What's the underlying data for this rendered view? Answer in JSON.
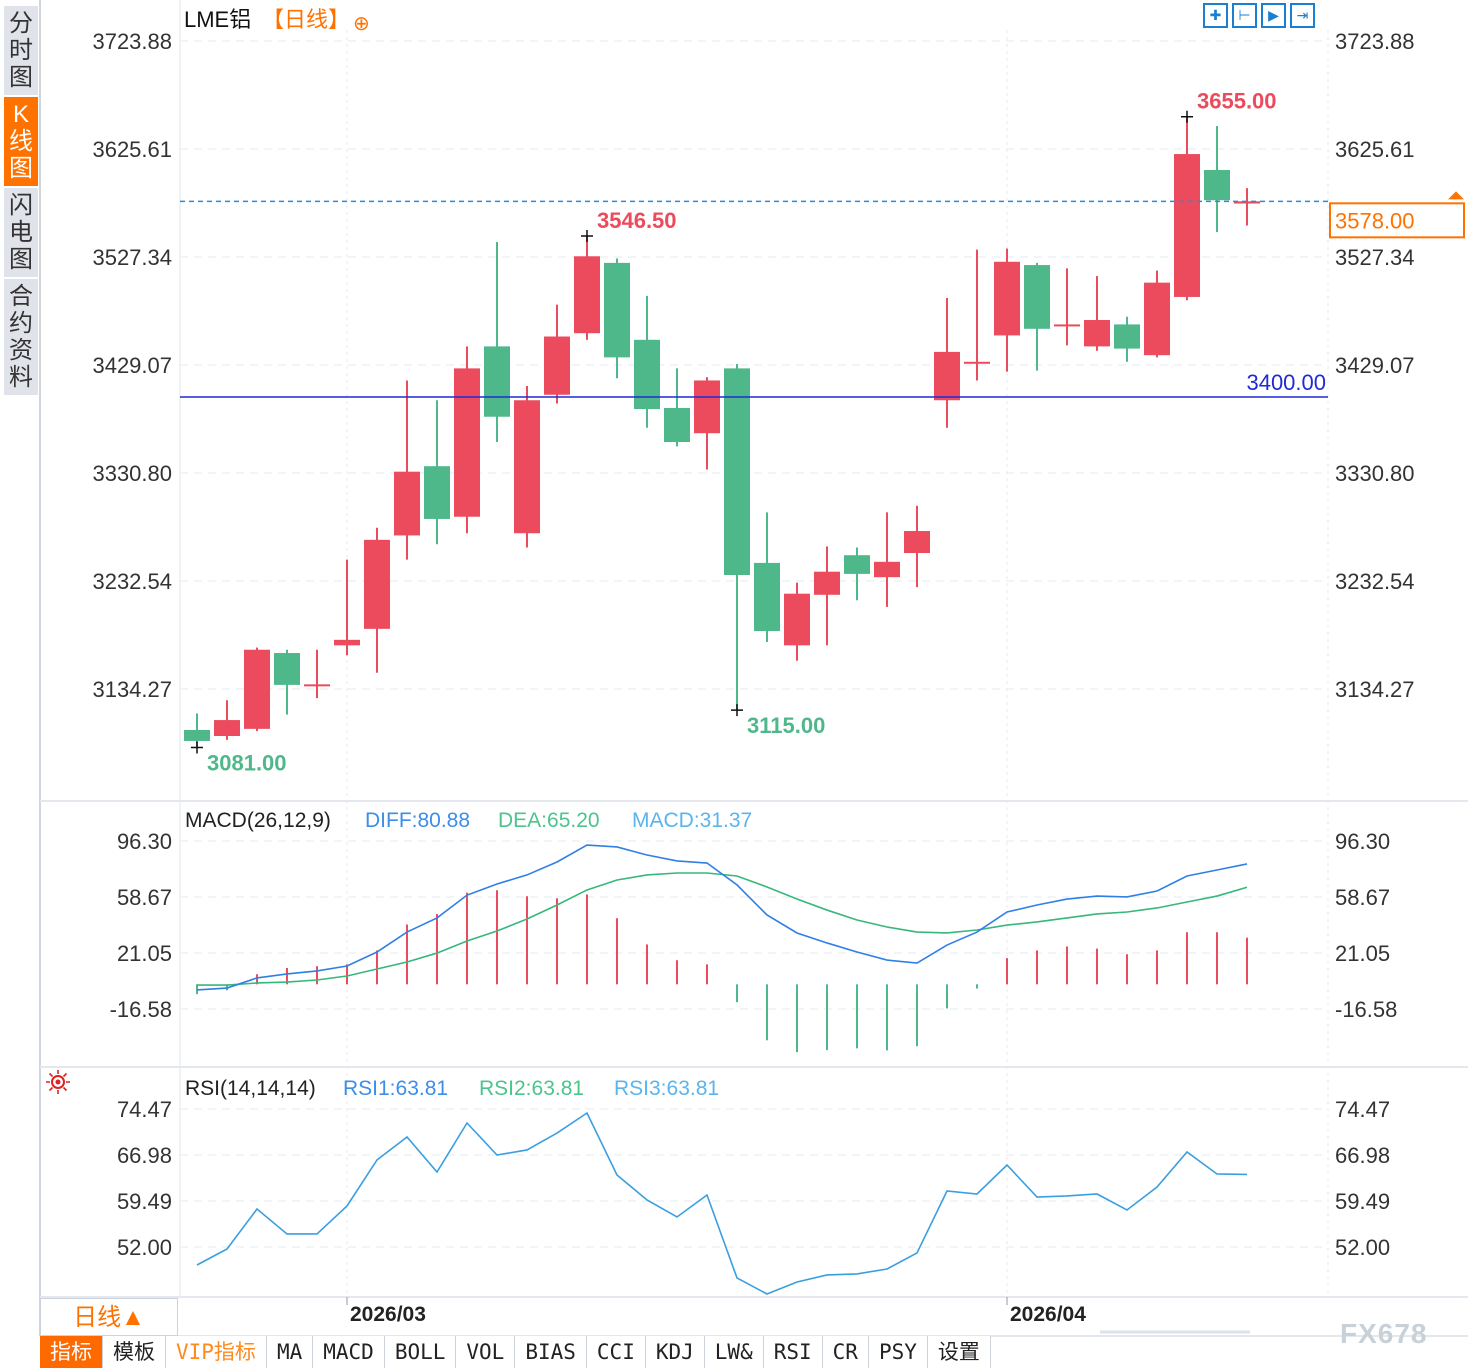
{
  "header": {
    "symbol": "LME铝",
    "period": "【日线】",
    "add_icon": "⊕"
  },
  "side_tabs": [
    {
      "label": "分时图",
      "active": false
    },
    {
      "label": "K线图",
      "active": true
    },
    {
      "label": "闪电图",
      "active": false
    },
    {
      "label": "合约资料",
      "active": false
    }
  ],
  "top_icons": [
    "crosshair-icon",
    "zoom-start-icon",
    "play-icon",
    "goto-end-icon"
  ],
  "period_selector": "日线▲",
  "toolbar": [
    {
      "label": "指标",
      "style": "active"
    },
    {
      "label": "模板",
      "style": ""
    },
    {
      "label": "VIP指标",
      "style": "vip"
    },
    {
      "label": "MA",
      "style": ""
    },
    {
      "label": "MACD",
      "style": ""
    },
    {
      "label": "BOLL",
      "style": ""
    },
    {
      "label": "VOL",
      "style": ""
    },
    {
      "label": "BIAS",
      "style": ""
    },
    {
      "label": "CCI",
      "style": ""
    },
    {
      "label": "KDJ",
      "style": ""
    },
    {
      "label": "LW&",
      "style": ""
    },
    {
      "label": "RSI",
      "style": ""
    },
    {
      "label": "CR",
      "style": ""
    },
    {
      "label": "PSY",
      "style": ""
    },
    {
      "label": "设置",
      "style": ""
    }
  ],
  "watermark": "FX678",
  "colors": {
    "up": "#eb4b5c",
    "down": "#4fb88a",
    "diff": "#2f7fe6",
    "dea": "#37b77a",
    "rsi": "#3a9fe0",
    "accent": "#ff7200",
    "hline": "#1f2ad6"
  },
  "chart_data": [
    {
      "type": "candlestick",
      "title": "LME铝【日线】",
      "y_ticks": [
        "3723.88",
        "3625.61",
        "3527.34",
        "3429.07",
        "3330.80",
        "3232.54",
        "3134.27"
      ],
      "ylim": [
        3134.27,
        3723.88
      ],
      "x_labels": [
        {
          "label": "2026/03",
          "index": 5
        },
        {
          "label": "2026/04",
          "index": 27
        }
      ],
      "current_price": {
        "value": 3578.0,
        "label": "3578.00"
      },
      "horizontal_line": {
        "value": 3400.0,
        "label": "3400.00"
      },
      "annotations": [
        {
          "label": "3655.00",
          "value": 3655.0,
          "index": 33,
          "kind": "high"
        },
        {
          "label": "3546.50",
          "value": 3546.5,
          "index": 13,
          "kind": "high"
        },
        {
          "label": "3115.00",
          "value": 3115.0,
          "index": 18,
          "kind": "low"
        },
        {
          "label": "3081.00",
          "value": 3081.0,
          "index": 0,
          "kind": "low"
        }
      ],
      "ohlc": [
        [
          3097,
          3087,
          3112,
          3081
        ],
        [
          3091.5,
          3106,
          3124,
          3088
        ],
        [
          3098,
          3170,
          3172,
          3096
        ],
        [
          3167,
          3138,
          3170,
          3111
        ],
        [
          3138,
          3138.5,
          3170,
          3126
        ],
        [
          3174,
          3179,
          3252,
          3165
        ],
        [
          3189,
          3270,
          3281,
          3149
        ],
        [
          3274,
          3332,
          3415,
          3252
        ],
        [
          3337,
          3289,
          3397,
          3266
        ],
        [
          3291,
          3426,
          3446,
          3276
        ],
        [
          3446,
          3382,
          3541,
          3359
        ],
        [
          3276,
          3397,
          3410,
          3263
        ],
        [
          3402,
          3455,
          3484,
          3394
        ],
        [
          3458,
          3528,
          3546.5,
          3452
        ],
        [
          3522,
          3436,
          3526,
          3417
        ],
        [
          3452,
          3389,
          3492,
          3372
        ],
        [
          3390,
          3359,
          3426,
          3355
        ],
        [
          3367,
          3415,
          3418,
          3334
        ],
        [
          3426,
          3238,
          3430,
          3115
        ],
        [
          3249,
          3187,
          3295,
          3177
        ],
        [
          3174,
          3221,
          3231,
          3160
        ],
        [
          3220,
          3241,
          3264,
          3174
        ],
        [
          3256,
          3239,
          3263,
          3215
        ],
        [
          3236,
          3250,
          3295,
          3209
        ],
        [
          3258,
          3278,
          3301,
          3227
        ],
        [
          3397,
          3441,
          3490,
          3372
        ],
        [
          3431,
          3432,
          3534,
          3415
        ],
        [
          3456,
          3523,
          3535,
          3423
        ],
        [
          3520,
          3462,
          3522,
          3424
        ],
        [
          3465,
          3466,
          3517,
          3447
        ],
        [
          3446,
          3470,
          3510,
          3442
        ],
        [
          3466,
          3444,
          3473,
          3432
        ],
        [
          3438,
          3504,
          3515,
          3436
        ],
        [
          3491,
          3621,
          3655,
          3488
        ],
        [
          3606.5,
          3579,
          3646.5,
          3550
        ],
        [
          3576,
          3578,
          3590,
          3556
        ]
      ]
    },
    {
      "type": "line",
      "title": "MACD(26,12,9)",
      "legend": [
        {
          "label": "DIFF:80.88"
        },
        {
          "label": "DEA:65.20"
        },
        {
          "label": "MACD:31.37"
        }
      ],
      "y_ticks": [
        "96.30",
        "58.67",
        "21.05",
        "-16.58"
      ],
      "ylim": [
        -16.58,
        96.3
      ],
      "diff": [
        -3.8,
        -2.5,
        4.3,
        7.0,
        9.0,
        12.3,
        21.7,
        35.1,
        44.6,
        59.9,
        67.4,
        73.5,
        82.2,
        93.6,
        92.3,
        86.9,
        82.9,
        81.5,
        66.8,
        46.6,
        34.5,
        27.8,
        21.7,
        16.3,
        14.3,
        26.4,
        35.1,
        48.6,
        53.3,
        57.3,
        59.3,
        58.7,
        62.7,
        72.8,
        76.8,
        80.88
      ],
      "dea": [
        -0.5,
        -0.5,
        0.9,
        1.5,
        2.9,
        5.6,
        10.3,
        15.0,
        21.0,
        29.1,
        35.8,
        43.9,
        53.3,
        63.4,
        70.1,
        73.5,
        74.8,
        74.8,
        72.8,
        65.4,
        57.3,
        49.9,
        43.2,
        38.5,
        35.1,
        34.5,
        36.5,
        39.8,
        41.9,
        44.6,
        47.3,
        48.6,
        51.3,
        55.3,
        59.3,
        65.2
      ]
    },
    {
      "type": "line",
      "title": "RSI(14,14,14)",
      "legend": [
        {
          "label": "RSI1:63.81"
        },
        {
          "label": "RSI2:63.81"
        },
        {
          "label": "RSI3:63.81"
        }
      ],
      "y_ticks": [
        "74.47",
        "66.98",
        "59.49",
        "52.00"
      ],
      "ylim": [
        52.0,
        74.47
      ],
      "rsi": [
        49.07,
        51.68,
        58.19,
        54.12,
        54.12,
        58.68,
        66.17,
        69.91,
        64.21,
        72.19,
        66.98,
        67.8,
        70.56,
        73.82,
        63.73,
        59.66,
        56.89,
        60.47,
        46.96,
        44.35,
        46.3,
        47.45,
        47.61,
        48.42,
        51.03,
        61.12,
        60.63,
        65.35,
        60.14,
        60.31,
        60.63,
        58.03,
        61.77,
        67.47,
        63.89,
        63.81
      ]
    }
  ]
}
